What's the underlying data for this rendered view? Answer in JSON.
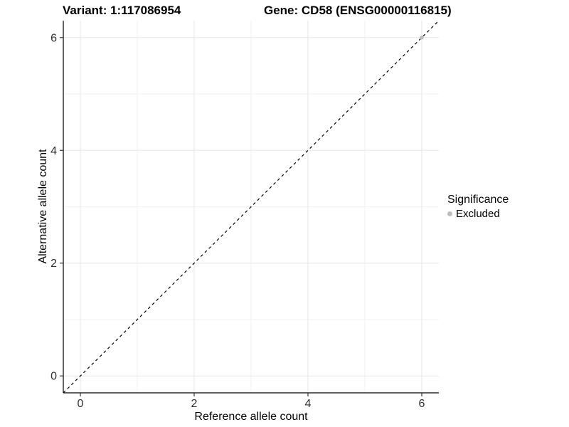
{
  "titles": {
    "variant": "Variant: 1:117086954",
    "gene": "Gene: CD58 (ENSG00000116815)"
  },
  "chart_data": {
    "type": "scatter",
    "title": "",
    "xlabel": "Reference allele count",
    "ylabel": "Alternative allele count",
    "xlim": [
      -0.3,
      6.3
    ],
    "ylim": [
      -0.3,
      6.3
    ],
    "x_major_ticks": [
      0,
      2,
      4,
      6
    ],
    "y_major_ticks": [
      0,
      2,
      4,
      6
    ],
    "x_minor_ticks": [
      1,
      3,
      5
    ],
    "y_minor_ticks": [
      1,
      3,
      5
    ],
    "grid": "on",
    "reference_line": {
      "kind": "identity y=x",
      "style": "dashed",
      "color": "#000000"
    },
    "points": [
      {
        "x": 6,
        "y": 6,
        "series": "Excluded"
      }
    ],
    "legend": {
      "title": "Significance",
      "position": "right",
      "items": [
        {
          "label": "Excluded",
          "color": "#bebebe"
        }
      ]
    }
  },
  "colors": {
    "background": "#ffffff",
    "axis_line": "#000000",
    "tick_mark": "#333333",
    "tick_label": "#303030",
    "grid_major": "#e6e6e6",
    "grid_minor": "#f2f2f2",
    "excluded_point": "#bebebe"
  }
}
